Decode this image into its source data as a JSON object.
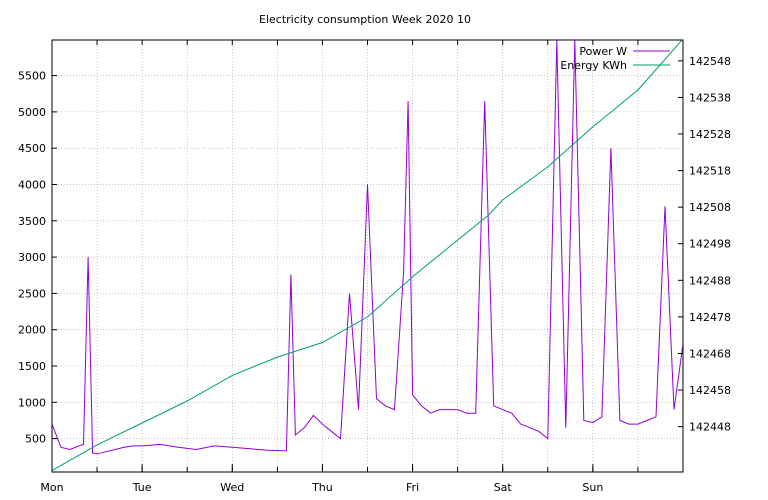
{
  "chart_data": {
    "type": "line",
    "title": "Electricity consumption Week 2020 10",
    "legend_position": "top-right",
    "grid": true,
    "x_ticks": [
      "Mon",
      "Tue",
      "Wed",
      "Thu",
      "Fri",
      "Sat",
      "Sun"
    ],
    "xlim": [
      0,
      7
    ],
    "y_left_ticks": [
      500,
      1000,
      1500,
      2000,
      2500,
      3000,
      3500,
      4000,
      4500,
      5000,
      5500
    ],
    "y_left_lim": [
      40,
      5990
    ],
    "y_right_ticks": [
      142448,
      142458,
      142468,
      142478,
      142488,
      142498,
      142508,
      142518,
      142528,
      142538,
      142548
    ],
    "y_right_lim": [
      142435.6,
      142553.7
    ],
    "series": [
      {
        "name": "Power W",
        "axis": "left",
        "color": "#9400d3",
        "x": [
          0,
          0.1,
          0.2,
          0.3,
          0.35,
          0.4,
          0.45,
          0.5,
          0.6,
          0.7,
          0.8,
          0.9,
          1.0,
          1.2,
          1.4,
          1.6,
          1.8,
          2.0,
          2.2,
          2.4,
          2.6,
          2.65,
          2.7,
          2.8,
          2.9,
          3.0,
          3.1,
          3.2,
          3.3,
          3.4,
          3.5,
          3.6,
          3.7,
          3.8,
          3.9,
          3.95,
          4.0,
          4.1,
          4.2,
          4.3,
          4.4,
          4.5,
          4.6,
          4.7,
          4.8,
          4.9,
          5.0,
          5.1,
          5.2,
          5.3,
          5.4,
          5.5,
          5.6,
          5.7,
          5.8,
          5.9,
          6.0,
          6.1,
          6.2,
          6.3,
          6.4,
          6.5,
          6.6,
          6.7,
          6.8,
          6.9,
          7.0
        ],
        "y": [
          700,
          380,
          350,
          400,
          420,
          3000,
          300,
          290,
          320,
          350,
          380,
          400,
          400,
          420,
          380,
          350,
          400,
          380,
          360,
          340,
          330,
          2760,
          550,
          650,
          820,
          700,
          600,
          500,
          2500,
          900,
          4000,
          1050,
          950,
          900,
          2800,
          5150,
          1100,
          950,
          850,
          900,
          900,
          900,
          850,
          850,
          5150,
          950,
          900,
          850,
          700,
          650,
          600,
          500,
          5990,
          650,
          5990,
          750,
          720,
          800,
          4500,
          750,
          700,
          700,
          750,
          800,
          3700,
          900,
          1800
        ]
      },
      {
        "name": "Energy KWh",
        "axis": "right",
        "color": "#009e73",
        "x": [
          0,
          0.5,
          1.0,
          1.5,
          2.0,
          2.5,
          3.0,
          3.5,
          4.0,
          4.5,
          4.85,
          5.0,
          5.5,
          6.0,
          6.5,
          7.0
        ],
        "y": [
          142436,
          142443,
          142449,
          142455,
          142462,
          142467,
          142471,
          142478,
          142489,
          142499,
          142506,
          142510,
          142519,
          142530,
          142540,
          142554
        ]
      }
    ]
  }
}
